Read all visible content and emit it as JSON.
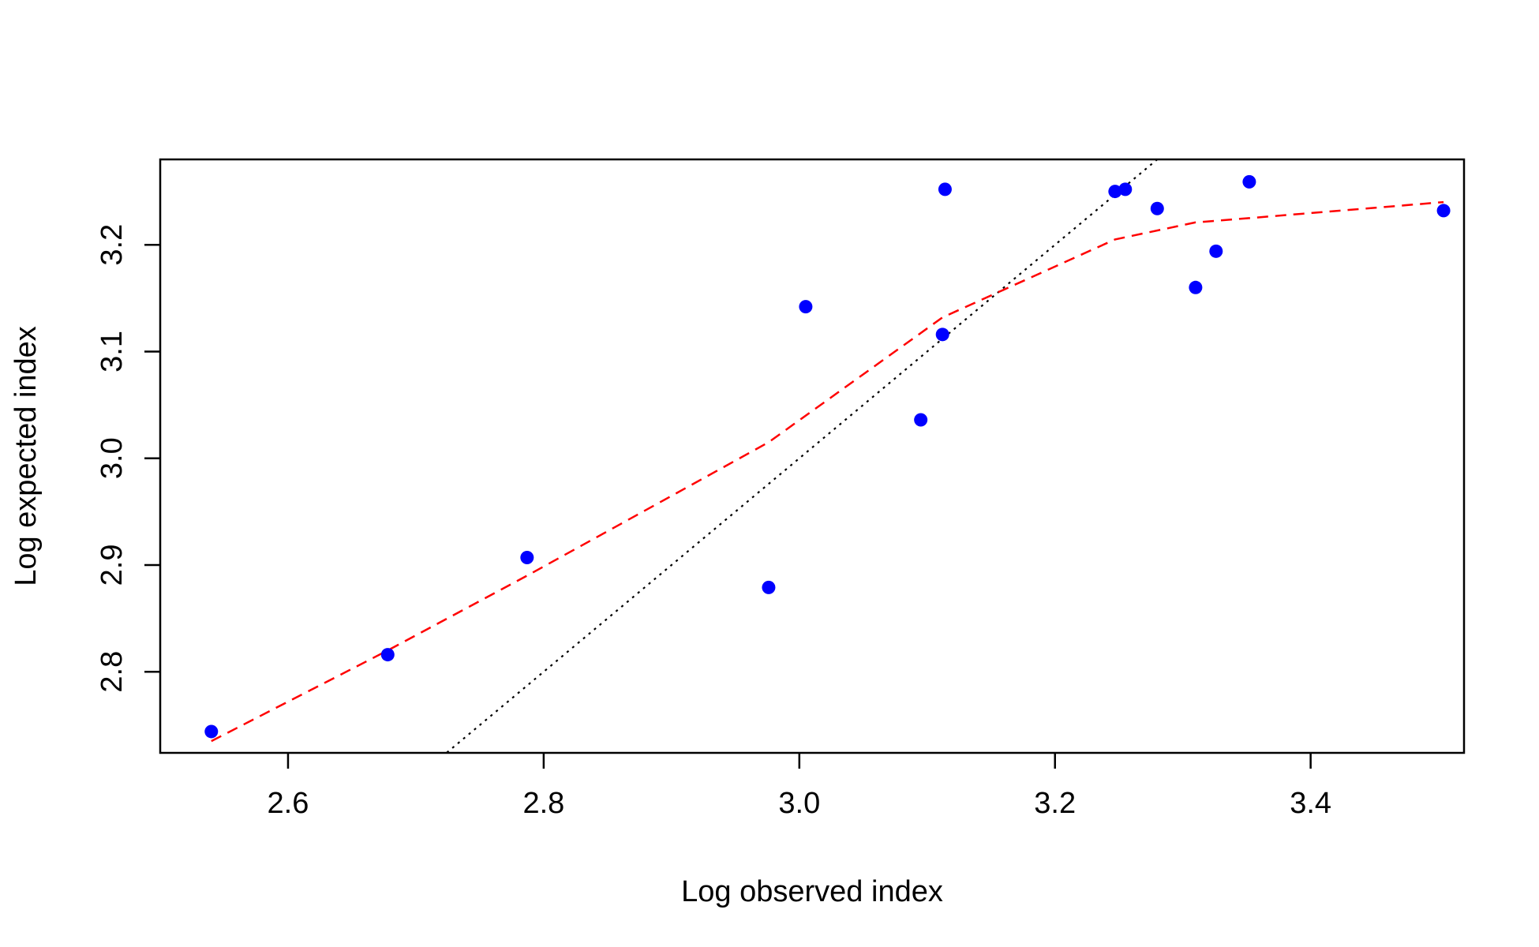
{
  "chart_data": {
    "type": "scatter",
    "title": "",
    "xlabel": "Log observed index",
    "ylabel": "Log expected index",
    "xlim": [
      2.5,
      3.52
    ],
    "ylim": [
      2.724,
      3.28
    ],
    "xticks": [
      2.6,
      2.8,
      3.0,
      3.2,
      3.4
    ],
    "xtick_labels": [
      "2.6",
      "2.8",
      "3.0",
      "3.2",
      "3.4"
    ],
    "yticks": [
      2.8,
      2.9,
      3.0,
      3.1,
      3.2
    ],
    "ytick_labels": [
      "2.8",
      "2.9",
      "3.0",
      "3.1",
      "3.2"
    ],
    "grid": false,
    "points": {
      "color": "#0000ff",
      "x": [
        2.54,
        2.678,
        2.787,
        2.976,
        3.005,
        3.095,
        3.112,
        3.114,
        3.247,
        3.255,
        3.28,
        3.31,
        3.326,
        3.352,
        3.504
      ],
      "y": [
        2.744,
        2.816,
        2.907,
        2.879,
        3.142,
        3.036,
        3.116,
        3.252,
        3.25,
        3.252,
        3.234,
        3.16,
        3.194,
        3.259,
        3.232
      ]
    },
    "smooth_line": {
      "color": "#ff0000",
      "style": "dashed",
      "x": [
        2.54,
        2.678,
        2.787,
        2.976,
        3.112,
        3.247,
        3.31,
        3.352,
        3.504
      ],
      "y": [
        2.735,
        2.82,
        2.89,
        3.015,
        3.132,
        3.205,
        3.221,
        3.225,
        3.24
      ]
    },
    "reference_line": {
      "color": "#000000",
      "style": "dotted",
      "type": "identity",
      "x": [
        2.72,
        3.28
      ],
      "y": [
        2.72,
        3.28
      ]
    }
  }
}
